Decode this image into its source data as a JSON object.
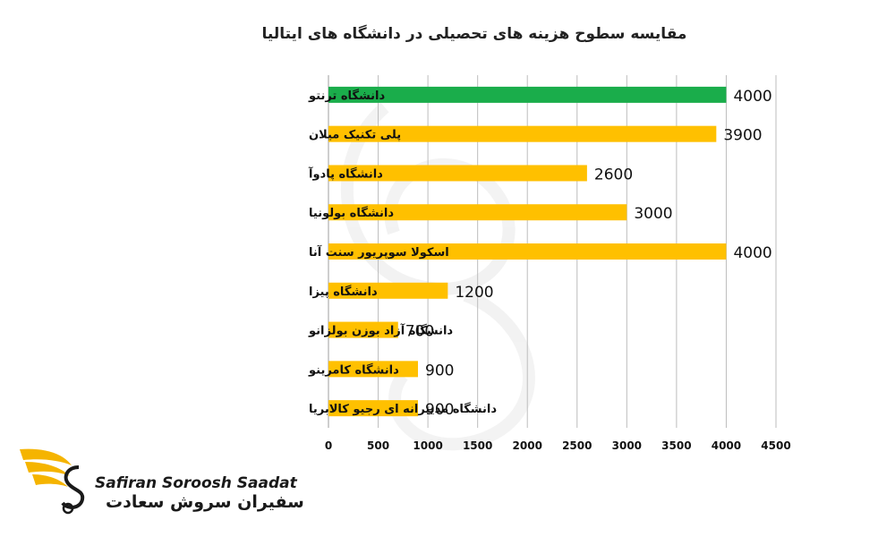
{
  "chart_data": {
    "type": "bar",
    "orientation": "horizontal",
    "title": "مقایسه سطوح هزینه های تحصیلی در دانشگاه های ایتالیا",
    "categories": [
      "دانشگاه ترنتو",
      "پلی تکنیک میلان",
      "دانشگاه پادوآ",
      "دانشگاه بولونیا",
      "اسکولا سوپریور سنت آنا",
      "دانشگاه پیزا",
      "دانشگاه آزاد بوزن بولزانو",
      "دانشگاه کامرینو",
      "دانشگاه مدیترانه ای رجیو کالابریا"
    ],
    "values": [
      4000,
      3900,
      2600,
      3000,
      4000,
      1200,
      700,
      900,
      900
    ],
    "bar_colors": [
      "#1aad4b",
      "#ffc000",
      "#ffc000",
      "#ffc000",
      "#ffc000",
      "#ffc000",
      "#ffc000",
      "#ffc000",
      "#ffc000"
    ],
    "xlim": [
      0,
      4500
    ],
    "x_ticks": [
      "0",
      "500",
      "1000",
      "1500",
      "2000",
      "2500",
      "3000",
      "3500",
      "4000",
      "4500"
    ],
    "grid": "vertical",
    "legend": "none"
  },
  "logo": {
    "name_en": "Safiran Soroosh Saadat",
    "name_fa": "سفیران سروش سعادت",
    "accent_color": "#f5b400",
    "icon": "winged-s-logo-icon"
  }
}
